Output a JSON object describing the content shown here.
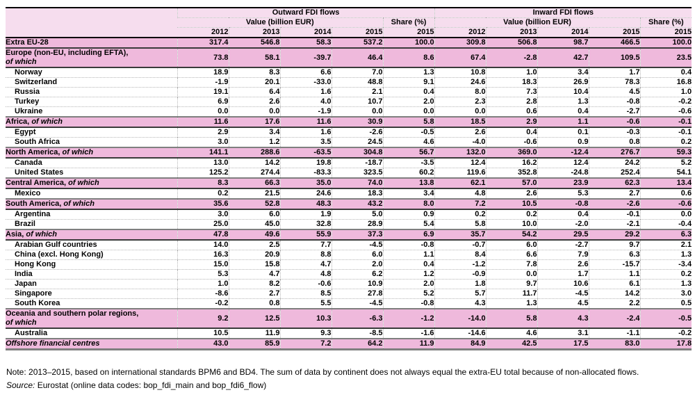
{
  "colors": {
    "header_pink": "#f6ddee",
    "row_pink": "#efb9dc",
    "dotted_grid": "#b5b5b5",
    "bottom_border": "#7f7f7f"
  },
  "chart_data": {
    "type": "table",
    "column_groups": [
      "Outward FDI flows",
      "Inward FDI flows"
    ],
    "value_header": "Value (billion EUR)",
    "share_header": "Share (%)",
    "years": [
      "2012",
      "2013",
      "2014",
      "2015"
    ],
    "share_year": "2015",
    "of_which_label": "of which",
    "rows": [
      {
        "type": "total",
        "label": "Extra EU-28",
        "of_which": false,
        "two_line": false,
        "outward": [
          317.4,
          546.8,
          58.3,
          537.2,
          100.0
        ],
        "inward": [
          309.8,
          506.8,
          98.7,
          466.5,
          100.0
        ]
      },
      {
        "type": "region",
        "label": "Europe (non-EU, including EFTA),",
        "of_which": true,
        "two_line": true,
        "outward": [
          73.8,
          58.1,
          -39.7,
          46.4,
          8.6
        ],
        "inward": [
          67.4,
          -2.8,
          42.7,
          109.5,
          23.5
        ]
      },
      {
        "type": "country",
        "label": "Norway",
        "of_which": false,
        "two_line": false,
        "outward": [
          18.9,
          8.3,
          6.6,
          7.0,
          1.3
        ],
        "inward": [
          10.8,
          1.0,
          3.4,
          1.7,
          0.4
        ]
      },
      {
        "type": "country",
        "label": "Switzerland",
        "of_which": false,
        "two_line": false,
        "outward": [
          -1.9,
          20.1,
          -33.0,
          48.8,
          9.1
        ],
        "inward": [
          24.6,
          18.3,
          26.9,
          78.3,
          16.8
        ]
      },
      {
        "type": "country",
        "label": "Russia",
        "of_which": false,
        "two_line": false,
        "outward": [
          19.1,
          6.4,
          1.6,
          2.1,
          0.4
        ],
        "inward": [
          8.0,
          7.3,
          10.4,
          4.5,
          1.0
        ]
      },
      {
        "type": "country",
        "label": "Turkey",
        "of_which": false,
        "two_line": false,
        "outward": [
          6.9,
          2.6,
          4.0,
          10.7,
          2.0
        ],
        "inward": [
          2.3,
          2.8,
          1.3,
          -0.8,
          -0.2
        ]
      },
      {
        "type": "country",
        "label": "Ukraine",
        "of_which": false,
        "two_line": false,
        "outward": [
          0.0,
          0.0,
          -1.9,
          0.0,
          0.0
        ],
        "inward": [
          0.0,
          0.6,
          0.4,
          -2.7,
          -0.6
        ]
      },
      {
        "type": "region",
        "label": "Africa,",
        "of_which": true,
        "two_line": false,
        "outward": [
          11.6,
          17.6,
          11.6,
          30.9,
          5.8
        ],
        "inward": [
          18.5,
          2.9,
          1.1,
          -0.6,
          -0.1
        ]
      },
      {
        "type": "country",
        "label": "Egypt",
        "of_which": false,
        "two_line": false,
        "outward": [
          2.9,
          3.4,
          1.6,
          -2.6,
          -0.5
        ],
        "inward": [
          2.6,
          0.4,
          0.1,
          -0.3,
          -0.1
        ]
      },
      {
        "type": "country",
        "label": "South Africa",
        "of_which": false,
        "two_line": false,
        "outward": [
          3.0,
          1.2,
          3.5,
          24.5,
          4.6
        ],
        "inward": [
          -4.0,
          -0.6,
          0.9,
          0.8,
          0.2
        ]
      },
      {
        "type": "region",
        "label": "North America,",
        "of_which": true,
        "two_line": false,
        "outward": [
          141.1,
          288.6,
          -63.5,
          304.8,
          56.7
        ],
        "inward": [
          132.0,
          369.0,
          -12.4,
          276.7,
          59.3
        ]
      },
      {
        "type": "country",
        "label": "Canada",
        "of_which": false,
        "two_line": false,
        "outward": [
          13.0,
          14.2,
          19.8,
          -18.7,
          -3.5
        ],
        "inward": [
          12.4,
          16.2,
          12.4,
          24.2,
          5.2
        ]
      },
      {
        "type": "country",
        "label": "United States",
        "of_which": false,
        "two_line": false,
        "outward": [
          125.2,
          274.4,
          -83.3,
          323.5,
          60.2
        ],
        "inward": [
          119.6,
          352.8,
          -24.8,
          252.4,
          54.1
        ]
      },
      {
        "type": "region",
        "label": "Central America,",
        "of_which": true,
        "two_line": false,
        "outward": [
          8.3,
          66.3,
          35.0,
          74.0,
          13.8
        ],
        "inward": [
          62.1,
          57.0,
          23.9,
          62.3,
          13.4
        ]
      },
      {
        "type": "country",
        "label": "Mexico",
        "of_which": false,
        "two_line": false,
        "outward": [
          0.2,
          21.5,
          24.6,
          18.3,
          3.4
        ],
        "inward": [
          4.8,
          2.6,
          5.3,
          2.7,
          0.6
        ]
      },
      {
        "type": "region",
        "label": "South America,",
        "of_which": true,
        "two_line": false,
        "outward": [
          35.6,
          52.8,
          48.3,
          43.2,
          8.0
        ],
        "inward": [
          7.2,
          10.5,
          -0.8,
          -2.6,
          -0.6
        ]
      },
      {
        "type": "country",
        "label": "Argentina",
        "of_which": false,
        "two_line": false,
        "outward": [
          3.0,
          6.0,
          1.9,
          5.0,
          0.9
        ],
        "inward": [
          0.2,
          0.2,
          0.4,
          -0.1,
          0.0
        ]
      },
      {
        "type": "country",
        "label": "Brazil",
        "of_which": false,
        "two_line": false,
        "outward": [
          25.0,
          45.0,
          32.8,
          28.9,
          5.4
        ],
        "inward": [
          5.8,
          10.0,
          -2.0,
          -2.1,
          -0.4
        ]
      },
      {
        "type": "region",
        "label": "Asia,",
        "of_which": true,
        "two_line": false,
        "outward": [
          47.8,
          49.6,
          55.9,
          37.3,
          6.9
        ],
        "inward": [
          35.7,
          54.2,
          29.5,
          29.2,
          6.3
        ]
      },
      {
        "type": "country",
        "label": "Arabian Gulf countries",
        "of_which": false,
        "two_line": false,
        "outward": [
          14.0,
          2.5,
          7.7,
          -4.5,
          -0.8
        ],
        "inward": [
          -0.7,
          6.0,
          -2.7,
          9.7,
          2.1
        ]
      },
      {
        "type": "country",
        "label": "China (excl. Hong Kong)",
        "of_which": false,
        "two_line": false,
        "outward": [
          16.3,
          20.9,
          8.8,
          6.0,
          1.1
        ],
        "inward": [
          8.4,
          6.6,
          7.9,
          6.3,
          1.3
        ]
      },
      {
        "type": "country",
        "label": "Hong Kong",
        "of_which": false,
        "two_line": false,
        "outward": [
          15.0,
          15.8,
          4.7,
          2.0,
          0.4
        ],
        "inward": [
          -1.2,
          7.8,
          2.6,
          -15.7,
          -3.4
        ]
      },
      {
        "type": "country",
        "label": "India",
        "of_which": false,
        "two_line": false,
        "outward": [
          5.3,
          4.7,
          4.8,
          6.2,
          1.2
        ],
        "inward": [
          -0.9,
          0.0,
          1.7,
          1.1,
          0.2
        ]
      },
      {
        "type": "country",
        "label": "Japan",
        "of_which": false,
        "two_line": false,
        "outward": [
          1.0,
          8.2,
          -0.6,
          10.9,
          2.0
        ],
        "inward": [
          1.8,
          9.7,
          10.6,
          6.1,
          1.3
        ]
      },
      {
        "type": "country",
        "label": "Singapore",
        "of_which": false,
        "two_line": false,
        "outward": [
          -8.6,
          2.7,
          8.5,
          27.8,
          5.2
        ],
        "inward": [
          5.7,
          11.7,
          -4.5,
          14.2,
          3.0
        ]
      },
      {
        "type": "country",
        "label": "South Korea",
        "of_which": false,
        "two_line": false,
        "outward": [
          -0.2,
          0.8,
          5.5,
          -4.5,
          -0.8
        ],
        "inward": [
          4.3,
          1.3,
          4.5,
          2.2,
          0.5
        ]
      },
      {
        "type": "region",
        "label": "Oceania and southern polar regions,",
        "of_which": true,
        "two_line": true,
        "outward": [
          9.2,
          12.5,
          10.3,
          -6.3,
          -1.2
        ],
        "inward": [
          -14.0,
          5.8,
          4.3,
          -2.4,
          -0.5
        ]
      },
      {
        "type": "country",
        "label": "Australia",
        "of_which": false,
        "two_line": false,
        "outward": [
          10.5,
          11.9,
          9.3,
          -8.5,
          -1.6
        ],
        "inward": [
          -14.6,
          4.6,
          3.1,
          -1.1,
          -0.2
        ]
      },
      {
        "type": "offshore",
        "label": "Offshore financial centres",
        "of_which": false,
        "two_line": false,
        "outward": [
          43.0,
          85.9,
          7.2,
          64.2,
          11.9
        ],
        "inward": [
          84.9,
          42.5,
          17.5,
          83.0,
          17.8
        ]
      }
    ]
  },
  "note": "Note: 2013–2015, based on international standards BPM6 and BD4. The sum of data by continent does not always equal the extra-EU total because of non-allocated flows.",
  "source_label": "Source:",
  "source_text": " Eurostat (online data codes: bop_fdi_main and bop_fdi6_flow)"
}
